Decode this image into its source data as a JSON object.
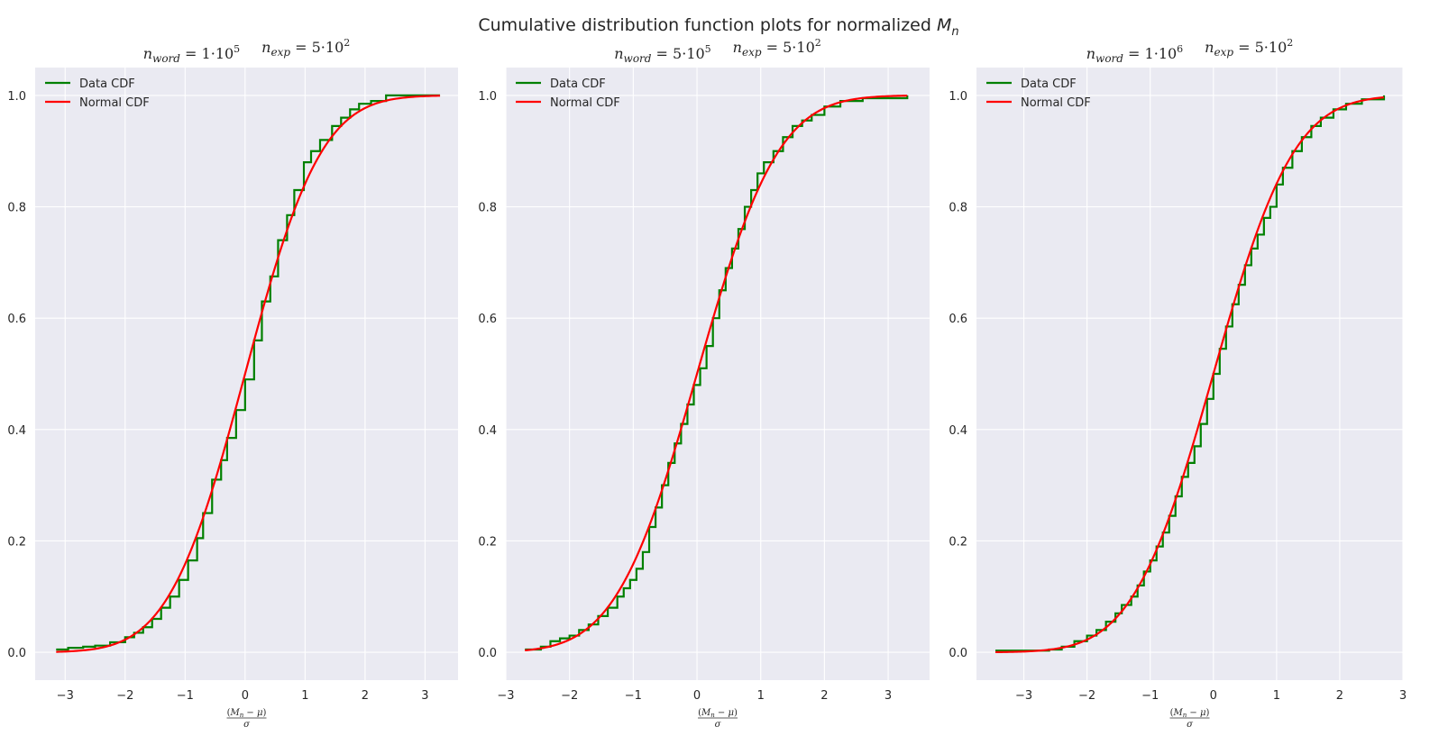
{
  "suptitle": "Cumulative distribution function plots for normalized M_n",
  "chart_data": [
    {
      "type": "line",
      "title": "n_word = 1·10^5    n_exp = 5·10^2",
      "xlabel": "(M_n − μ) / σ",
      "ylabel": "",
      "xlim": [
        -3.5,
        3.55
      ],
      "ylim": [
        -0.05,
        1.05
      ],
      "xticks": [
        -3,
        -2,
        -1,
        0,
        1,
        2,
        3
      ],
      "yticks": [
        0.0,
        0.2,
        0.4,
        0.6,
        0.8,
        1.0
      ],
      "xtick_labels": [
        "−3",
        "−2",
        "−1",
        "0",
        "1",
        "2",
        "3"
      ],
      "ytick_labels": [
        "0.0",
        "0.2",
        "0.4",
        "0.6",
        "0.8",
        "1.0"
      ],
      "grid": true,
      "legend": "upper-left",
      "series": [
        {
          "name": "Data CDF",
          "color": "#008000",
          "style": "step",
          "x": [
            -3.15,
            -2.95,
            -2.7,
            -2.5,
            -2.25,
            -2.0,
            -1.85,
            -1.7,
            -1.55,
            -1.4,
            -1.25,
            -1.1,
            -0.95,
            -0.8,
            -0.7,
            -0.55,
            -0.4,
            -0.3,
            -0.15,
            0.0,
            0.15,
            0.28,
            0.42,
            0.55,
            0.7,
            0.82,
            0.98,
            1.1,
            1.25,
            1.45,
            1.6,
            1.75,
            1.9,
            2.1,
            2.35,
            3.25
          ],
          "y": [
            0.005,
            0.008,
            0.01,
            0.012,
            0.018,
            0.027,
            0.035,
            0.045,
            0.06,
            0.08,
            0.1,
            0.13,
            0.165,
            0.205,
            0.25,
            0.31,
            0.345,
            0.385,
            0.435,
            0.49,
            0.56,
            0.63,
            0.675,
            0.74,
            0.785,
            0.83,
            0.88,
            0.9,
            0.92,
            0.945,
            0.96,
            0.975,
            0.985,
            0.99,
            1.0,
            1.0
          ]
        },
        {
          "name": "Normal CDF",
          "color": "#ff0000",
          "style": "line",
          "function": "normal-cdf",
          "mu": 0,
          "sigma": 1,
          "x_range": [
            -3.15,
            3.25
          ]
        }
      ]
    },
    {
      "type": "line",
      "title": "n_word = 5·10^5    n_exp = 5·10^2",
      "xlabel": "(M_n − μ) / σ",
      "ylabel": "",
      "xlim": [
        -3.0,
        3.65
      ],
      "ylim": [
        -0.05,
        1.05
      ],
      "xticks": [
        -3,
        -2,
        -1,
        0,
        1,
        2,
        3
      ],
      "yticks": [
        0.0,
        0.2,
        0.4,
        0.6,
        0.8,
        1.0
      ],
      "xtick_labels": [
        "−3",
        "−2",
        "−1",
        "0",
        "1",
        "2",
        "3"
      ],
      "ytick_labels": [
        "0.0",
        "0.2",
        "0.4",
        "0.6",
        "0.8",
        "1.0"
      ],
      "grid": true,
      "legend": "upper-left",
      "series": [
        {
          "name": "Data CDF",
          "color": "#008000",
          "style": "step",
          "x": [
            -2.7,
            -2.45,
            -2.3,
            -2.15,
            -2.0,
            -1.85,
            -1.7,
            -1.55,
            -1.4,
            -1.25,
            -1.15,
            -1.05,
            -0.95,
            -0.85,
            -0.75,
            -0.65,
            -0.55,
            -0.45,
            -0.35,
            -0.25,
            -0.15,
            -0.05,
            0.05,
            0.15,
            0.25,
            0.35,
            0.45,
            0.55,
            0.65,
            0.75,
            0.85,
            0.95,
            1.05,
            1.2,
            1.35,
            1.5,
            1.65,
            1.8,
            2.0,
            2.25,
            2.6,
            3.3
          ],
          "y": [
            0.005,
            0.01,
            0.02,
            0.025,
            0.03,
            0.04,
            0.05,
            0.065,
            0.08,
            0.1,
            0.115,
            0.13,
            0.15,
            0.18,
            0.225,
            0.26,
            0.3,
            0.34,
            0.375,
            0.41,
            0.445,
            0.48,
            0.51,
            0.55,
            0.6,
            0.65,
            0.69,
            0.725,
            0.76,
            0.8,
            0.83,
            0.86,
            0.88,
            0.9,
            0.925,
            0.945,
            0.955,
            0.965,
            0.98,
            0.99,
            0.995,
            1.0
          ]
        },
        {
          "name": "Normal CDF",
          "color": "#ff0000",
          "style": "line",
          "function": "normal-cdf",
          "mu": 0,
          "sigma": 1,
          "x_range": [
            -2.7,
            3.3
          ]
        }
      ]
    },
    {
      "type": "line",
      "title": "n_word = 1·10^6    n_exp = 5·10^2",
      "xlabel": "(M_n − μ) / σ",
      "ylabel": "",
      "xlim": [
        -3.75,
        3.0
      ],
      "ylim": [
        -0.05,
        1.05
      ],
      "xticks": [
        -3,
        -2,
        -1,
        0,
        1,
        2,
        3
      ],
      "yticks": [
        0.0,
        0.2,
        0.4,
        0.6,
        0.8,
        1.0
      ],
      "xtick_labels": [
        "−3",
        "−2",
        "−1",
        "0",
        "1",
        "2",
        "3"
      ],
      "ytick_labels": [
        "0.0",
        "0.2",
        "0.4",
        "0.6",
        "0.8",
        "1.0"
      ],
      "grid": true,
      "legend": "upper-left",
      "series": [
        {
          "name": "Data CDF",
          "color": "#008000",
          "style": "step",
          "x": [
            -3.45,
            -2.6,
            -2.4,
            -2.2,
            -2.0,
            -1.85,
            -1.7,
            -1.55,
            -1.45,
            -1.3,
            -1.2,
            -1.1,
            -1.0,
            -0.9,
            -0.8,
            -0.7,
            -0.6,
            -0.5,
            -0.4,
            -0.3,
            -0.2,
            -0.1,
            0.0,
            0.1,
            0.2,
            0.3,
            0.4,
            0.5,
            0.6,
            0.7,
            0.8,
            0.9,
            1.0,
            1.1,
            1.25,
            1.4,
            1.55,
            1.7,
            1.9,
            2.1,
            2.35,
            2.7
          ],
          "y": [
            0.003,
            0.005,
            0.01,
            0.02,
            0.03,
            0.04,
            0.055,
            0.07,
            0.085,
            0.1,
            0.12,
            0.145,
            0.165,
            0.19,
            0.215,
            0.245,
            0.28,
            0.315,
            0.34,
            0.37,
            0.41,
            0.455,
            0.5,
            0.545,
            0.585,
            0.625,
            0.66,
            0.695,
            0.725,
            0.75,
            0.78,
            0.8,
            0.84,
            0.87,
            0.9,
            0.925,
            0.945,
            0.96,
            0.975,
            0.985,
            0.993,
            1.0
          ]
        },
        {
          "name": "Normal CDF",
          "color": "#ff0000",
          "style": "line",
          "function": "normal-cdf",
          "mu": 0,
          "sigma": 1,
          "x_range": [
            -3.45,
            2.7
          ]
        }
      ]
    }
  ]
}
